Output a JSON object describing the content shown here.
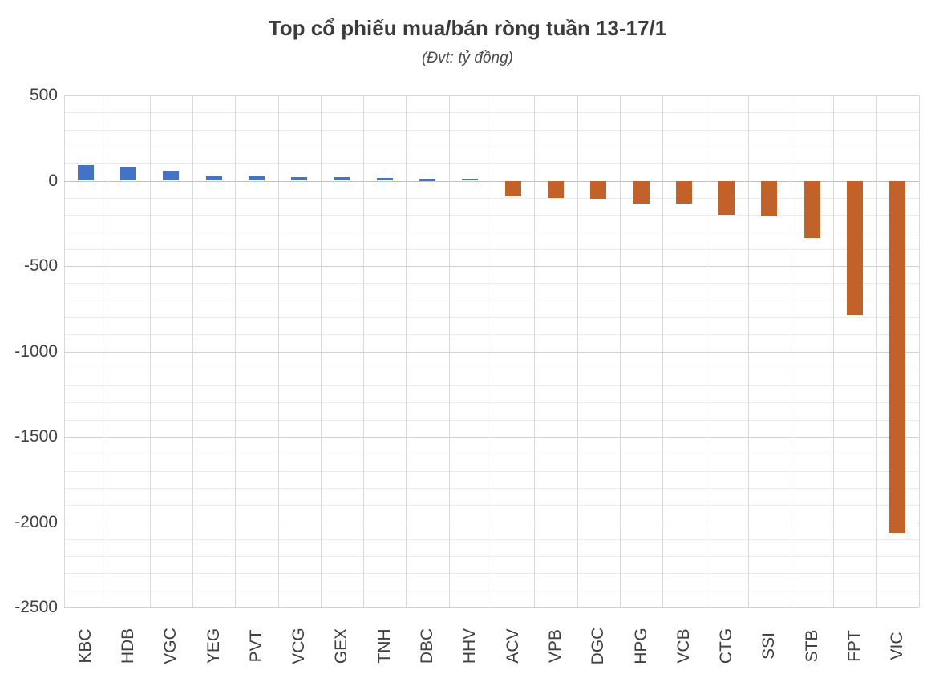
{
  "chart_data": {
    "type": "bar",
    "title": "Top cổ phiếu mua/bán ròng tuần 13-17/1",
    "subtitle": "(Đvt: tỷ đồng)",
    "unit": "tỷ đồng",
    "xlabel": "",
    "ylabel": "",
    "categories": [
      "KBC",
      "HDB",
      "VGC",
      "YEG",
      "PVT",
      "VCG",
      "GEX",
      "TNH",
      "DBC",
      "HHV",
      "ACV",
      "VPB",
      "DGC",
      "HPG",
      "VCB",
      "CTG",
      "SSI",
      "STB",
      "FPT",
      "VIC"
    ],
    "values": [
      90,
      83,
      58,
      27,
      24,
      23,
      20,
      18,
      14,
      13,
      -91,
      -100,
      -105,
      -135,
      -133,
      -200,
      -208,
      -335,
      -785,
      -2065
    ],
    "ylim": [
      -2500,
      500
    ],
    "y_major_ticks": [
      500,
      0,
      -500,
      -1000,
      -1500,
      -2000,
      -2500
    ],
    "y_minor_step": 100,
    "grid": "horizontal minor+major lines, vertical category boundary lines",
    "legend": "none",
    "bar_sign_meaning": {
      "positive": "mua ròng (net buy)",
      "negative": "bán ròng (net sell)"
    },
    "colors": {
      "positive_bar": "#4472C4",
      "negative_bar": "#C1622B",
      "minor_gridline": "#EBEBEB",
      "major_gridline": "#D2D2D2",
      "vertical_gridline": "#D9D9D9",
      "zero_axis": "#C2C2C2",
      "text": "#404040"
    }
  }
}
